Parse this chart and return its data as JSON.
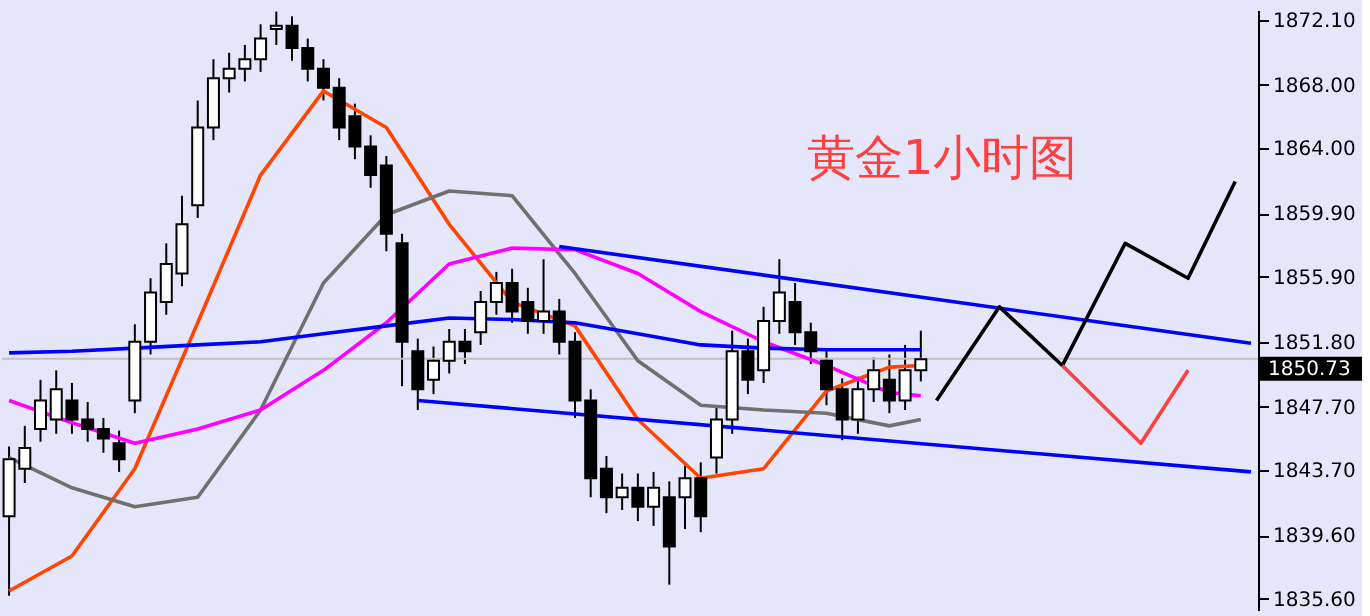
{
  "chart_data": {
    "type": "candlestick",
    "annotations": [
      "黄金1小时图"
    ],
    "categories": [
      null,
      null,
      null,
      null,
      null,
      null,
      null,
      null,
      null,
      null,
      null,
      null,
      null,
      null,
      null,
      null,
      null,
      null,
      null,
      null,
      null,
      null,
      null,
      null,
      null,
      null,
      null,
      null,
      null,
      null,
      null,
      null,
      null,
      null,
      null,
      null,
      null,
      null,
      null,
      null,
      null,
      null,
      null,
      null,
      null,
      null,
      null,
      null,
      null,
      null,
      null,
      null,
      null,
      null,
      null,
      null,
      null,
      null,
      null,
      null,
      null,
      null,
      null,
      null,
      null,
      null,
      null,
      null,
      null,
      null,
      null,
      null,
      null,
      null,
      null,
      null,
      null,
      null,
      null,
      null
    ],
    "ohlc": [
      [
        1840.8,
        1845.2,
        1835.8,
        1844.4
      ],
      [
        1843.8,
        1846.5,
        1842.9,
        1845.1
      ],
      [
        1846.3,
        1849.4,
        1845.5,
        1848.1
      ],
      [
        1846.9,
        1850.0,
        1846.0,
        1848.8
      ],
      [
        1848.1,
        1849.2,
        1846.0,
        1846.9
      ],
      [
        1846.9,
        1848.0,
        1845.5,
        1846.3
      ],
      [
        1846.3,
        1847.0,
        1844.8,
        1845.7
      ],
      [
        1845.4,
        1846.2,
        1843.6,
        1844.4
      ],
      [
        1848.1,
        1852.9,
        1847.3,
        1851.8
      ],
      [
        1851.8,
        1855.8,
        1851.0,
        1854.9
      ],
      [
        1854.3,
        1858.0,
        1853.5,
        1856.7
      ],
      [
        1856.1,
        1861.0,
        1855.3,
        1859.2
      ],
      [
        1860.4,
        1867.0,
        1859.6,
        1865.3
      ],
      [
        1865.3,
        1869.6,
        1864.5,
        1868.4
      ],
      [
        1868.4,
        1870.0,
        1867.5,
        1869.0
      ],
      [
        1869.0,
        1870.5,
        1868.2,
        1869.6
      ],
      [
        1869.6,
        1871.8,
        1868.8,
        1870.9
      ],
      [
        1871.5,
        1872.6,
        1870.5,
        1871.7
      ],
      [
        1871.7,
        1872.3,
        1869.5,
        1870.3
      ],
      [
        1870.3,
        1870.9,
        1868.2,
        1869.0
      ],
      [
        1869.0,
        1869.6,
        1867.0,
        1867.8
      ],
      [
        1867.8,
        1868.4,
        1864.5,
        1865.3
      ],
      [
        1866.0,
        1866.8,
        1863.3,
        1864.1
      ],
      [
        1864.1,
        1864.8,
        1861.5,
        1862.3
      ],
      [
        1862.9,
        1863.5,
        1857.5,
        1858.6
      ],
      [
        1858.0,
        1858.6,
        1849.0,
        1851.8
      ],
      [
        1851.2,
        1852.0,
        1847.5,
        1848.8
      ],
      [
        1849.4,
        1851.5,
        1848.5,
        1850.6
      ],
      [
        1850.6,
        1852.6,
        1849.8,
        1851.8
      ],
      [
        1851.8,
        1852.6,
        1850.4,
        1851.2
      ],
      [
        1852.4,
        1855.0,
        1851.6,
        1854.3
      ],
      [
        1854.3,
        1856.2,
        1853.5,
        1855.5
      ],
      [
        1855.5,
        1856.4,
        1853.0,
        1853.7
      ],
      [
        1854.3,
        1855.2,
        1852.3,
        1853.1
      ],
      [
        1853.1,
        1857.0,
        1852.3,
        1853.7
      ],
      [
        1853.7,
        1854.5,
        1851.0,
        1851.8
      ],
      [
        1851.8,
        1852.4,
        1847.0,
        1848.1
      ],
      [
        1848.1,
        1848.8,
        1842.0,
        1843.2
      ],
      [
        1843.8,
        1844.6,
        1841.0,
        1842.0
      ],
      [
        1842.0,
        1843.5,
        1841.2,
        1842.6
      ],
      [
        1842.6,
        1843.5,
        1840.5,
        1841.4
      ],
      [
        1841.4,
        1843.6,
        1840.2,
        1842.6
      ],
      [
        1842.0,
        1843.0,
        1836.5,
        1838.9
      ],
      [
        1842.0,
        1844.0,
        1840.0,
        1843.2
      ],
      [
        1843.2,
        1844.2,
        1839.8,
        1840.8
      ],
      [
        1844.5,
        1847.8,
        1843.5,
        1846.9
      ],
      [
        1846.9,
        1852.5,
        1846.0,
        1851.2
      ],
      [
        1851.2,
        1852.0,
        1848.5,
        1849.4
      ],
      [
        1850.0,
        1854.0,
        1849.2,
        1853.1
      ],
      [
        1853.1,
        1857.0,
        1852.3,
        1854.9
      ],
      [
        1854.3,
        1855.5,
        1851.6,
        1852.4
      ],
      [
        1852.4,
        1853.0,
        1850.4,
        1851.2
      ],
      [
        1850.6,
        1851.3,
        1847.8,
        1848.8
      ],
      [
        1848.8,
        1849.5,
        1845.6,
        1846.9
      ],
      [
        1846.9,
        1849.6,
        1846.0,
        1848.8
      ],
      [
        1848.8,
        1850.8,
        1848.0,
        1850.0
      ],
      [
        1849.4,
        1851.0,
        1847.3,
        1848.1
      ],
      [
        1848.1,
        1851.6,
        1847.5,
        1850.0
      ],
      [
        1850.0,
        1852.5,
        1849.3,
        1850.7
      ],
      null,
      null,
      null,
      null,
      null,
      null,
      null,
      null,
      null,
      null,
      null,
      null,
      null,
      null,
      null,
      null,
      null,
      null,
      null,
      null,
      null
    ],
    "series": [
      {
        "type": "line",
        "color": "#ff4500",
        "values": [
          1836.1,
          null,
          null,
          null,
          1838.3,
          null,
          null,
          null,
          1843.8,
          null,
          null,
          null,
          1853.0,
          null,
          null,
          null,
          1862.3,
          null,
          null,
          null,
          1867.6,
          null,
          null,
          null,
          1865.3,
          null,
          null,
          null,
          1859.2,
          null,
          null,
          null,
          1854.3,
          null,
          null,
          null,
          1852.8,
          null,
          null,
          null,
          1846.9,
          null,
          null,
          null,
          1843.2,
          null,
          null,
          null,
          1843.8,
          null,
          null,
          null,
          1848.7,
          null,
          null,
          null,
          1850.2,
          null,
          1850.3,
          null,
          null,
          null,
          null,
          null,
          null,
          null,
          null,
          null,
          null,
          null,
          null,
          null,
          null,
          null,
          null,
          null,
          null,
          null,
          null,
          null
        ]
      },
      {
        "type": "line",
        "color": "#707070",
        "values": [
          1844.5,
          null,
          null,
          null,
          1842.6,
          null,
          null,
          null,
          1841.4,
          null,
          null,
          null,
          1842.0,
          null,
          null,
          null,
          1847.5,
          null,
          null,
          null,
          1855.5,
          null,
          null,
          null,
          1859.8,
          null,
          null,
          null,
          1861.3,
          null,
          null,
          null,
          1861.0,
          null,
          null,
          null,
          1856.1,
          null,
          null,
          null,
          1850.6,
          null,
          null,
          null,
          1847.8,
          null,
          null,
          null,
          1847.5,
          null,
          null,
          null,
          1847.3,
          null,
          null,
          null,
          1846.5,
          null,
          1846.9,
          null,
          null,
          null,
          null,
          null,
          null,
          null,
          null,
          null,
          null,
          null,
          null,
          null,
          null,
          null,
          null,
          null,
          null,
          null,
          null,
          null
        ]
      },
      {
        "type": "line",
        "color": "#ff00ff",
        "values": [
          1848.1,
          null,
          null,
          null,
          1846.7,
          null,
          null,
          null,
          1845.4,
          null,
          null,
          null,
          1846.3,
          null,
          null,
          null,
          1847.5,
          null,
          null,
          null,
          1850.0,
          null,
          null,
          null,
          1853.0,
          null,
          null,
          null,
          1856.7,
          null,
          null,
          null,
          1857.7,
          null,
          null,
          null,
          1857.6,
          null,
          null,
          null,
          1856.1,
          null,
          null,
          null,
          1853.7,
          null,
          null,
          null,
          1851.8,
          null,
          null,
          null,
          1850.3,
          null,
          null,
          null,
          1848.6,
          null,
          1848.4,
          null,
          null,
          null,
          null,
          null,
          null,
          null,
          null,
          null,
          null,
          null,
          null,
          null,
          null,
          null,
          null,
          null,
          null,
          null,
          null,
          null
        ]
      },
      {
        "type": "line",
        "color": "#0000ff",
        "values": [
          1851.1,
          null,
          null,
          null,
          1851.2,
          null,
          null,
          null,
          1851.4,
          null,
          null,
          null,
          1851.6,
          null,
          null,
          null,
          1851.8,
          null,
          null,
          null,
          1852.3,
          null,
          null,
          null,
          1852.8,
          null,
          null,
          null,
          1853.3,
          null,
          null,
          null,
          1853.2,
          null,
          null,
          null,
          1853.0,
          null,
          null,
          null,
          1852.3,
          null,
          null,
          null,
          1851.6,
          null,
          null,
          null,
          1851.4,
          null,
          null,
          null,
          1851.3,
          null,
          null,
          null,
          1851.3,
          null,
          1851.3,
          null,
          null,
          null,
          null,
          null,
          null,
          null,
          null,
          null,
          null,
          null,
          null,
          null,
          null,
          null,
          null,
          null,
          null,
          null,
          null,
          null
        ]
      },
      {
        "type": "line",
        "color": "#0000ff",
        "values": [
          null,
          null,
          null,
          null,
          null,
          null,
          null,
          null,
          null,
          null,
          null,
          null,
          null,
          null,
          null,
          null,
          null,
          null,
          null,
          null,
          null,
          null,
          null,
          null,
          null,
          null,
          null,
          null,
          null,
          null,
          null,
          null,
          null,
          null,
          null,
          1857.8,
          null,
          null,
          null,
          null,
          null,
          null,
          null,
          null,
          null,
          null,
          null,
          null,
          null,
          null,
          null,
          null,
          null,
          null,
          null,
          null,
          null,
          null,
          null,
          null,
          null,
          null,
          null,
          null,
          null,
          null,
          null,
          null,
          null,
          null,
          null,
          null,
          null,
          null,
          null,
          null,
          null,
          null,
          null,
          1851.7
        ]
      },
      {
        "type": "line",
        "color": "#0000ff",
        "values": [
          null,
          null,
          null,
          null,
          null,
          null,
          null,
          null,
          null,
          null,
          null,
          null,
          null,
          null,
          null,
          null,
          null,
          null,
          null,
          null,
          null,
          null,
          null,
          null,
          null,
          null,
          1848.1,
          null,
          null,
          null,
          null,
          null,
          null,
          null,
          null,
          null,
          null,
          null,
          null,
          null,
          null,
          null,
          null,
          null,
          null,
          null,
          null,
          null,
          null,
          null,
          null,
          null,
          null,
          null,
          null,
          null,
          null,
          null,
          null,
          null,
          null,
          null,
          null,
          null,
          null,
          null,
          null,
          null,
          null,
          null,
          null,
          null,
          null,
          null,
          null,
          null,
          null,
          null,
          null,
          1843.6
        ]
      },
      {
        "type": "line",
        "color": "#000000",
        "values": [
          null,
          null,
          null,
          null,
          null,
          null,
          null,
          null,
          null,
          null,
          null,
          null,
          null,
          null,
          null,
          null,
          null,
          null,
          null,
          null,
          null,
          null,
          null,
          null,
          null,
          null,
          null,
          null,
          null,
          null,
          null,
          null,
          null,
          null,
          null,
          null,
          null,
          null,
          null,
          null,
          null,
          null,
          null,
          null,
          null,
          null,
          null,
          null,
          null,
          null,
          null,
          null,
          null,
          null,
          null,
          null,
          null,
          null,
          null,
          1848.1,
          null,
          null,
          null,
          1854.0,
          null,
          null,
          null,
          1850.3,
          null,
          null,
          null,
          1858.0,
          null,
          null,
          null,
          1855.8,
          null,
          null,
          1861.9,
          null
        ]
      },
      {
        "type": "line",
        "color": "#ff4040",
        "values": [
          null,
          null,
          null,
          null,
          null,
          null,
          null,
          null,
          null,
          null,
          null,
          null,
          null,
          null,
          null,
          null,
          null,
          null,
          null,
          null,
          null,
          null,
          null,
          null,
          null,
          null,
          null,
          null,
          null,
          null,
          null,
          null,
          null,
          null,
          null,
          null,
          null,
          null,
          null,
          null,
          null,
          null,
          null,
          null,
          null,
          null,
          null,
          null,
          null,
          null,
          null,
          null,
          null,
          null,
          null,
          null,
          null,
          null,
          null,
          null,
          null,
          null,
          null,
          null,
          null,
          null,
          null,
          1850.3,
          null,
          null,
          null,
          null,
          1845.4,
          null,
          null,
          1850.0,
          null,
          null,
          null,
          null
        ]
      }
    ],
    "ref_lines": [
      {
        "axis": "y",
        "value": 1850.73,
        "label": "1850.73",
        "color": "#c0c0c0"
      }
    ],
    "ylim": [
      1834.9,
      1872.7
    ],
    "yticks": [
      {
        "value": 1872.1,
        "label": "1872.10"
      },
      {
        "value": 1868.0,
        "label": "1868.00"
      },
      {
        "value": 1864.0,
        "label": "1864.00"
      },
      {
        "value": 1859.9,
        "label": "1859.90"
      },
      {
        "value": 1855.9,
        "label": "1855.90"
      },
      {
        "value": 1851.8,
        "label": "1851.80"
      },
      {
        "value": 1847.7,
        "label": "1847.70"
      },
      {
        "value": 1843.7,
        "label": "1843.70"
      },
      {
        "value": 1839.6,
        "label": "1839.60"
      },
      {
        "value": 1835.6,
        "label": "1835.60"
      }
    ],
    "tick_labels": "y",
    "grid": false
  }
}
